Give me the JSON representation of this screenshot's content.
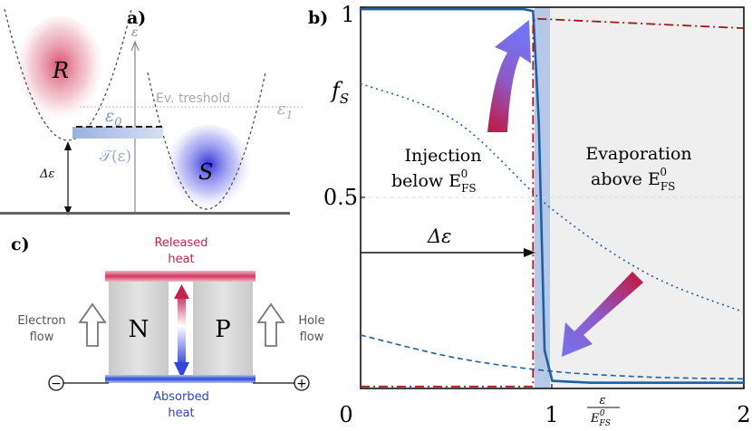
{
  "panel_a": {
    "label": "a)",
    "axis_label": "ε",
    "reservoir_r": "R",
    "reservoir_s": "S",
    "eps0": "ε",
    "eps0_sub": "0",
    "eps1": "ε",
    "eps1_sub": "1",
    "threshold": "Ev. treshold",
    "transmission": "𝒯(ε)",
    "delta_eps": "Δε"
  },
  "panel_c": {
    "label": "c)",
    "released_heat_line1": "Released",
    "released_heat_line2": "heat",
    "absorbed_heat_line1": "Absorbed",
    "absorbed_heat_line2": "heat",
    "n_label": "N",
    "p_label": "P",
    "electron_flow_line1": "Electron",
    "electron_flow_line2": "flow",
    "hole_flow_line1": "Hole",
    "hole_flow_line2": "flow",
    "minus": "−",
    "plus": "+"
  },
  "panel_b": {
    "label": "b)",
    "ylabel": "f",
    "ylabel_sub": "S",
    "injection_line1": "Injection",
    "injection_line2": "below E",
    "injection_sub": "FS",
    "injection_sup": "0",
    "evaporation_line1": "Evaporation",
    "evaporation_line2": "above E",
    "evaporation_sub": "FS",
    "evaporation_sup": "0",
    "delta_eps": "Δε",
    "xlabel_num": "ε",
    "xlabel_den": "E",
    "xlabel_den_sub": "FS",
    "xlabel_den_sup": "0"
  },
  "chart_data": {
    "type": "line",
    "xlim": [
      0,
      2
    ],
    "ylim": [
      0,
      1
    ],
    "x_ticks": [
      "0",
      "1",
      "2"
    ],
    "y_ticks": [
      "1",
      "0.5"
    ],
    "grid": false,
    "marker_x": 0.9,
    "series": [
      {
        "style": "solid",
        "color": "#1f5fa3",
        "x": [
          0,
          0.85,
          0.9,
          0.93,
          0.96,
          1.0,
          1.2,
          2.0
        ],
        "y": [
          0.995,
          0.995,
          0.99,
          0.7,
          0.1,
          0.02,
          0.015,
          0.015
        ]
      },
      {
        "style": "dotted",
        "color": "#1f5fa3",
        "x": [
          0,
          0.5,
          1.0,
          1.5,
          2.0
        ],
        "y": [
          0.8,
          0.7,
          0.47,
          0.3,
          0.2
        ]
      },
      {
        "style": "dashed",
        "color": "#1f5fa3",
        "x": [
          0,
          0.5,
          1.0,
          1.5,
          2.0
        ],
        "y": [
          0.14,
          0.08,
          0.045,
          0.03,
          0.025
        ]
      },
      {
        "style": "dashdot",
        "color": "#a01818",
        "x": [
          0,
          0.9,
          0.9,
          0.91,
          2.0
        ],
        "y": [
          0.005,
          0.005,
          0.96,
          0.97,
          0.945
        ]
      }
    ]
  }
}
